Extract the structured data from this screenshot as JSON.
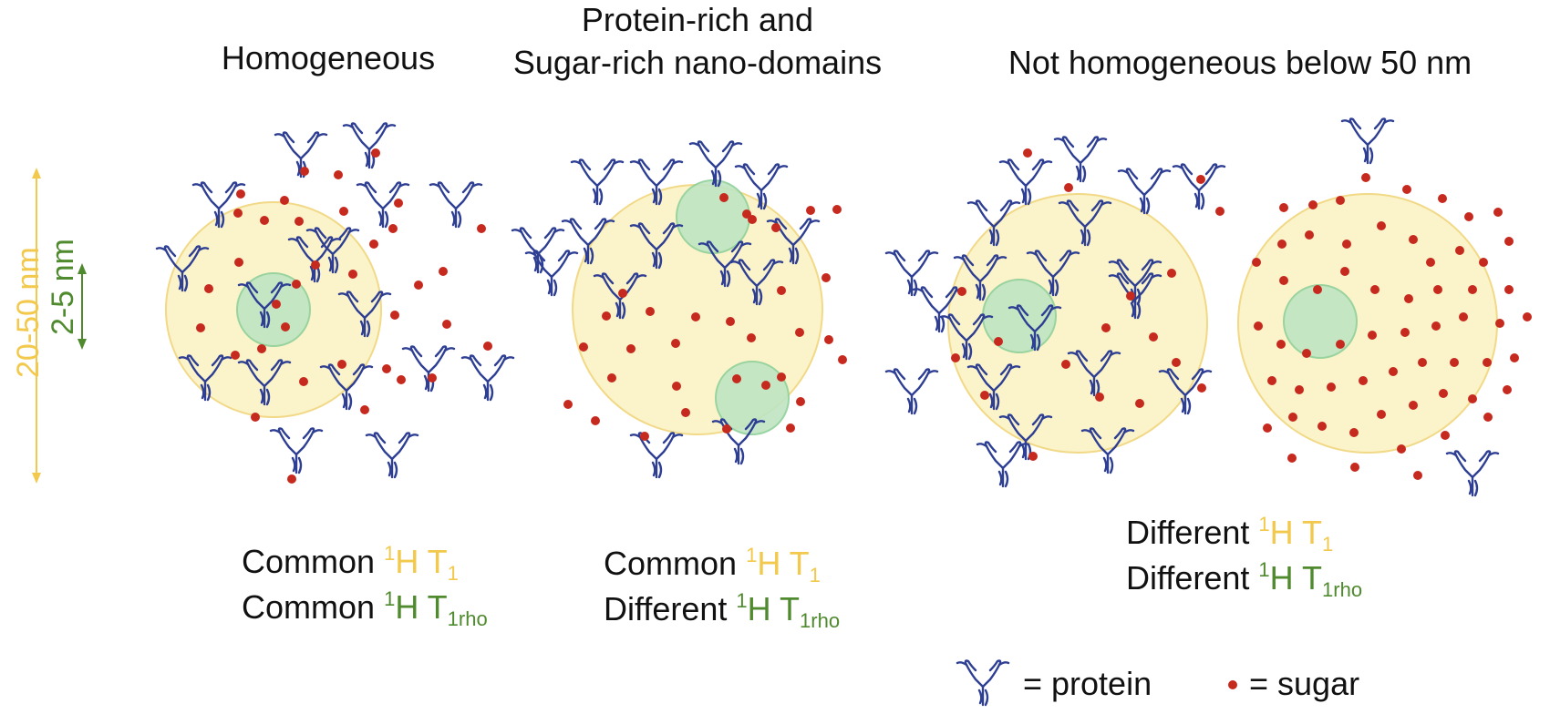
{
  "titles": {
    "homogeneous": "Homogeneous",
    "nano_line1": "Protein-rich and",
    "nano_line2": "Sugar-rich nano-domains",
    "not_homogeneous": "Not homogeneous below 50 nm"
  },
  "scale": {
    "large": "20-50 nm",
    "small": "2-5 nm"
  },
  "captions": {
    "panel1": {
      "l1_word": "Common",
      "l1_sup": "1",
      "l1_sym": "H T",
      "l1_sub": "1",
      "l2_word": "Common",
      "l2_sup": "1",
      "l2_sym": "H T",
      "l2_sub": "1rho"
    },
    "panel2": {
      "l1_word": "Common",
      "l1_sup": "1",
      "l1_sym": "H T",
      "l1_sub": "1",
      "l2_word": "Different",
      "l2_sup": "1",
      "l2_sym": "H T",
      "l2_sub": "1rho"
    },
    "panel3": {
      "l1_word": "Different",
      "l1_sup": "1",
      "l1_sym": "H T",
      "l1_sub": "1",
      "l2_word": "Different",
      "l2_sup": "1",
      "l2_sym": "H T",
      "l2_sub": "1rho"
    }
  },
  "legend": {
    "protein": "= protein",
    "sugar": "= sugar"
  },
  "colors": {
    "domain_fill": "#fbf3c9",
    "domain_stroke": "#f1d987",
    "nano_fill": "#bfe5c3",
    "nano_stroke": "#8fd09a",
    "sugar": "#c62a1f",
    "protein": "#2e3f93",
    "t1": "#f2c94c",
    "t1rho": "#4f8a2e"
  },
  "icons": {
    "protein": "antibody-icon",
    "sugar": "dot-icon"
  }
}
